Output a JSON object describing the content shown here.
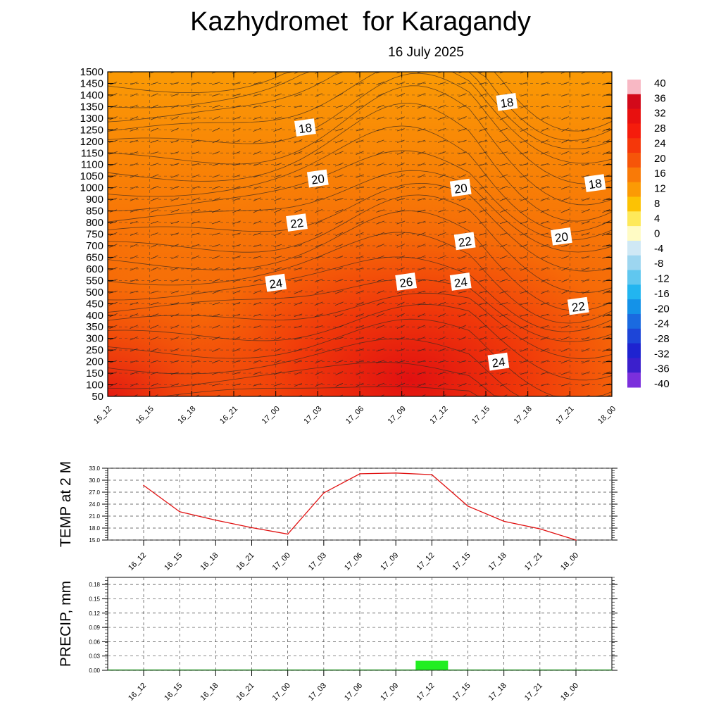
{
  "header": {
    "title": "Kazhydromet  for Karagandy",
    "subtitle": "16 July 2025"
  },
  "chart_data": [
    {
      "type": "heatmap",
      "name": "temperature-cross-section",
      "x_categories": [
        "16_12",
        "16_15",
        "16_18",
        "16_21",
        "17_00",
        "17_03",
        "17_06",
        "17_09",
        "17_12",
        "17_15",
        "17_18",
        "17_21",
        "18_00"
      ],
      "y_ticks": [
        50,
        100,
        150,
        200,
        250,
        300,
        350,
        400,
        450,
        500,
        550,
        600,
        650,
        700,
        750,
        800,
        850,
        900,
        1000,
        1050,
        1100,
        1150,
        1200,
        1250,
        1300,
        1350,
        1400,
        1450,
        1500
      ],
      "grid": true,
      "colorbar": {
        "labels": [
          "40",
          "36",
          "32",
          "28",
          "24",
          "20",
          "16",
          "12",
          "8",
          "4",
          "0",
          "-4",
          "-8",
          "-12",
          "-16",
          "-20",
          "-24",
          "-28",
          "-32",
          "-36",
          "-40"
        ],
        "colors": [
          "#f8b8c4",
          "#d3091a",
          "#e8100f",
          "#f51c0c",
          "#f5370a",
          "#f65509",
          "#f97a07",
          "#fb9a05",
          "#fcc204",
          "#fee95a",
          "#fffbc4",
          "#cfe8f5",
          "#9dd6f0",
          "#60c7ef",
          "#22b5f0",
          "#1492e8",
          "#1a6ae0",
          "#1d45d8",
          "#1e23d0",
          "#3b1fcc",
          "#7b2fdc"
        ]
      },
      "contour_labels": [
        {
          "text": "18",
          "x_index": 9.5,
          "y_level": 1370
        },
        {
          "text": "18",
          "x_index": 4.7,
          "y_level": 1260
        },
        {
          "text": "20",
          "x_index": 5.0,
          "y_level": 1040
        },
        {
          "text": "20",
          "x_index": 8.4,
          "y_level": 1000
        },
        {
          "text": "18",
          "x_index": 11.6,
          "y_level": 1020
        },
        {
          "text": "22",
          "x_index": 4.5,
          "y_level": 800
        },
        {
          "text": "22",
          "x_index": 8.5,
          "y_level": 720
        },
        {
          "text": "20",
          "x_index": 10.8,
          "y_level": 740
        },
        {
          "text": "24",
          "x_index": 4.0,
          "y_level": 540
        },
        {
          "text": "26",
          "x_index": 7.1,
          "y_level": 545
        },
        {
          "text": "24",
          "x_index": 8.4,
          "y_level": 545
        },
        {
          "text": "22",
          "x_index": 11.2,
          "y_level": 440
        },
        {
          "text": "24",
          "x_index": 9.3,
          "y_level": 200
        }
      ]
    },
    {
      "type": "line",
      "name": "temp-2m",
      "ylabel": "TEMP at 2 M",
      "categories": [
        "16_12",
        "16_15",
        "16_18",
        "16_21",
        "17_00",
        "17_03",
        "17_06",
        "17_09",
        "17_12",
        "17_15",
        "17_18",
        "17_21",
        "18_00"
      ],
      "values": [
        28.7,
        22.1,
        20.0,
        18.1,
        16.5,
        26.8,
        31.6,
        31.8,
        31.4,
        23.5,
        19.7,
        17.8,
        15.0
      ],
      "y_ticks": [
        "15.0",
        "18.0",
        "21.0",
        "24.0",
        "27.0",
        "30.0",
        "33.0"
      ],
      "ylim": [
        15,
        33
      ],
      "line_color": "#e01010",
      "grid": true
    },
    {
      "type": "bar",
      "name": "precip",
      "ylabel": "PRECIP, mm",
      "categories": [
        "16_12",
        "16_15",
        "16_18",
        "16_21",
        "17_00",
        "17_03",
        "17_06",
        "17_09",
        "17_12",
        "17_15",
        "17_18",
        "17_21",
        "18_00"
      ],
      "values": [
        0,
        0,
        0,
        0,
        0,
        0,
        0,
        0,
        0.02,
        0,
        0,
        0,
        0
      ],
      "y_ticks": [
        "0.00",
        "0.03",
        "0.06",
        "0.09",
        "0.12",
        "0.15",
        "0.18"
      ],
      "ylim": [
        0,
        0.195
      ],
      "bar_color": "#22ee22",
      "grid": true
    }
  ]
}
